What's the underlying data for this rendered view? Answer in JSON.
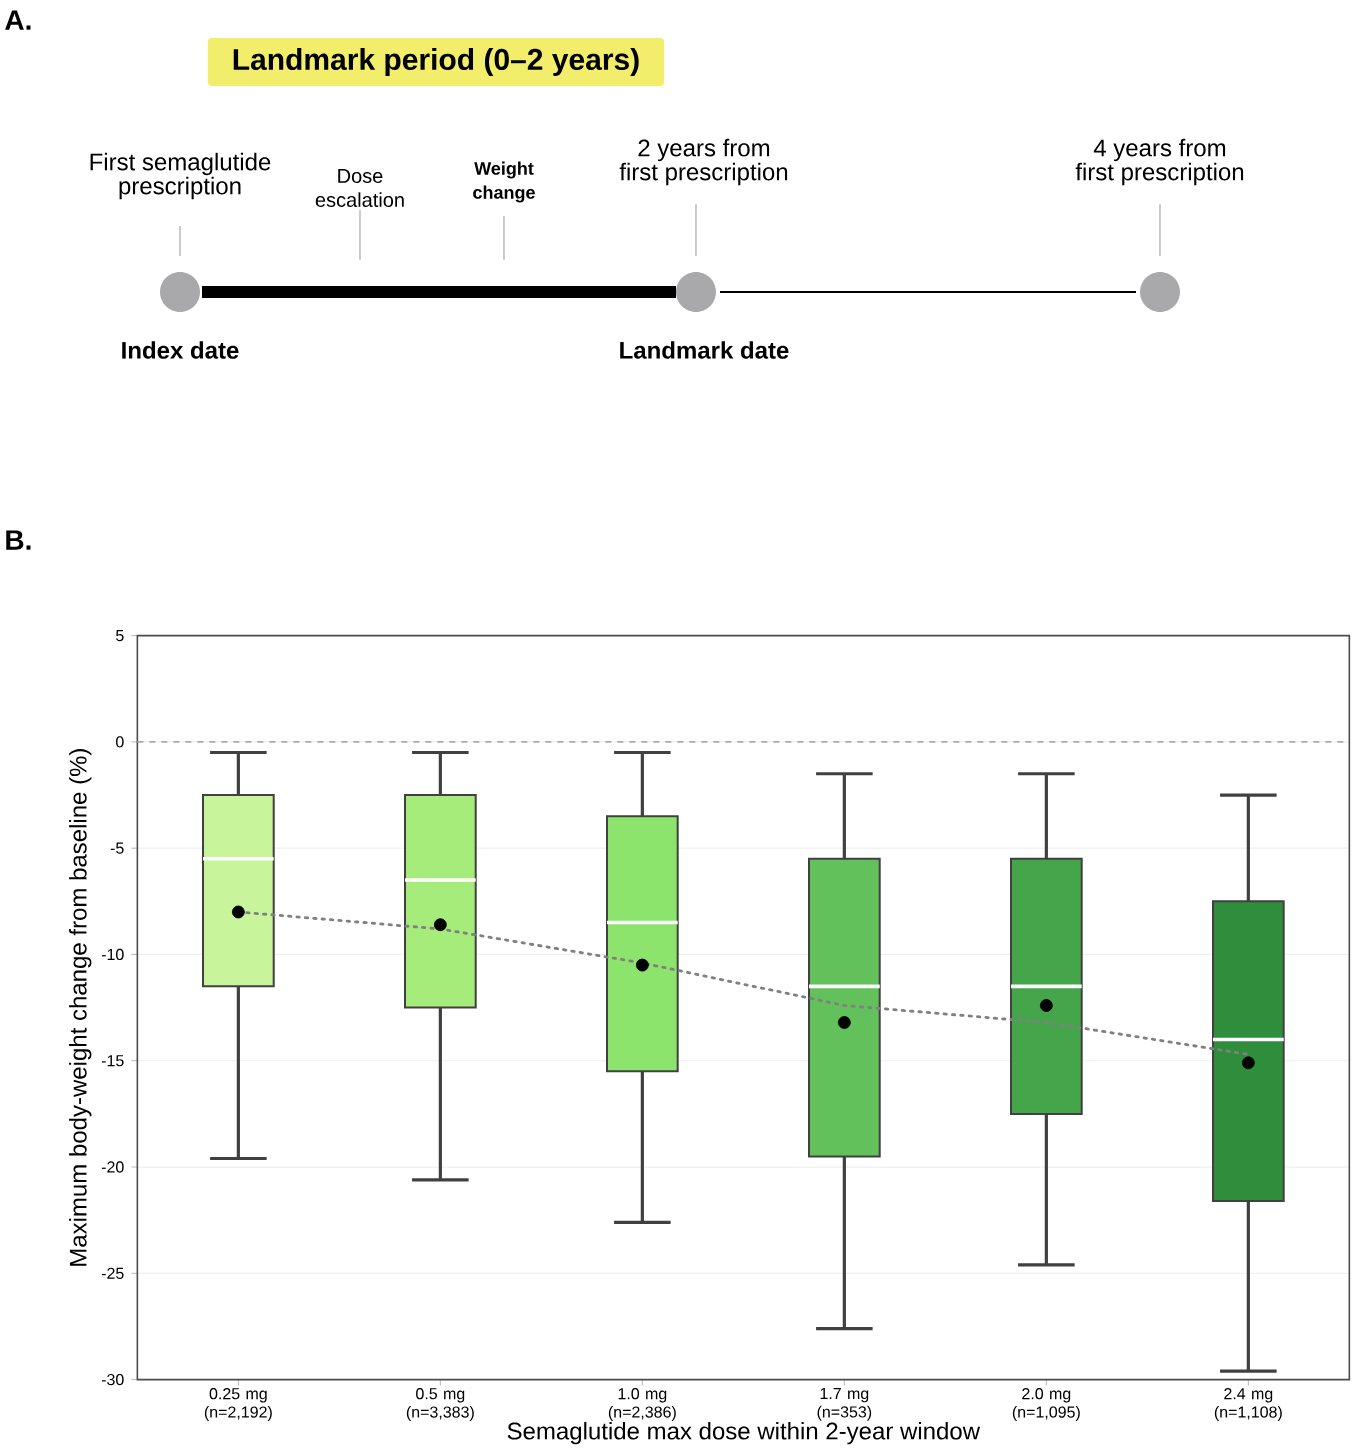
{
  "chart_data": [
    {
      "type": "other",
      "title": "Landmark period (0–2 years)",
      "annotations": [
        "A.",
        "First semaglutide prescription",
        "Dose escalation",
        "Weight change",
        "2 years from first prescription",
        "4 years from first prescription",
        "Index date",
        "Landmark date"
      ]
    },
    {
      "type": "box",
      "annotations": [
        "B."
      ],
      "xlabel": "Semaglutide max dose within 2-year window",
      "ylabel": "Maximum body-weight change from baseline (%)",
      "categories": [
        "0.25 mg (n=2,192)",
        "0.5 mg (n=3,383)",
        "1.0 mg (n=2,386)",
        "1.7 mg (n=353)",
        "2.0 mg (n=1,095)",
        "2.4 mg (n=1,108)"
      ],
      "colors": [
        "#c8f59c",
        "#a6ec7a",
        "#8ce46c",
        "#62c15a",
        "#45a54a",
        "#2f8e3b"
      ],
      "boxes": [
        {
          "low": -19.6,
          "q1": -11.5,
          "median": -5.5,
          "q3": -2.5,
          "high": -0.5,
          "mean": -8.0
        },
        {
          "low": -20.6,
          "q1": -12.5,
          "median": -6.5,
          "q3": -2.5,
          "high": -0.5,
          "mean": -8.6
        },
        {
          "low": -22.6,
          "q1": -15.5,
          "median": -8.5,
          "q3": -3.5,
          "high": -0.5,
          "mean": -10.5
        },
        {
          "low": -27.6,
          "q1": -19.5,
          "median": -11.5,
          "q3": -5.5,
          "high": -1.5,
          "mean": -13.2
        },
        {
          "low": -24.6,
          "q1": -17.5,
          "median": -11.5,
          "q3": -5.5,
          "high": -1.5,
          "mean": -12.4
        },
        {
          "low": -29.6,
          "q1": -21.6,
          "median": -14.0,
          "q3": -7.5,
          "high": -2.5,
          "mean": -15.1
        }
      ],
      "series": [
        {
          "type": "line",
          "color": "#808080",
          "line_style": "dotted",
          "marker": "none",
          "values": [
            -8.0,
            -8.8,
            -10.4,
            -12.4,
            -13.2,
            -14.7
          ]
        }
      ],
      "ylim": [
        -30,
        5
      ],
      "yticks": [
        -30,
        -25,
        -20,
        -15,
        -10,
        -5,
        0,
        5
      ],
      "grid": "y",
      "ref_lines": [
        {
          "axis": "y",
          "value": 0,
          "color": "#aaaaaa",
          "line_style": "dashed"
        }
      ]
    }
  ]
}
